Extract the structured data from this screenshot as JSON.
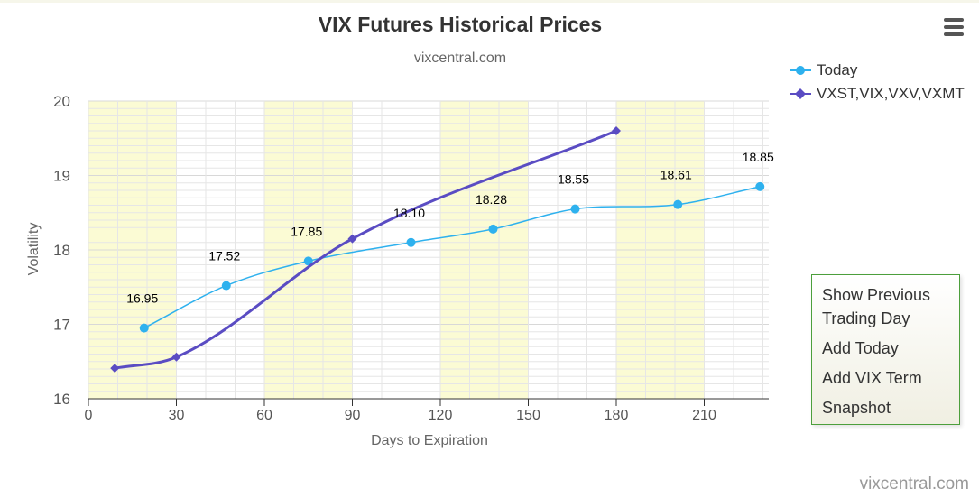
{
  "chart_data": {
    "type": "line",
    "title": "VIX Futures Historical Prices",
    "subtitle": "vixcentral.com",
    "xlabel": "Days to Expiration",
    "ylabel": "Volatility",
    "xlim": [
      0,
      232
    ],
    "ylim": [
      16,
      20
    ],
    "xticks": [
      0,
      30,
      60,
      90,
      120,
      150,
      180,
      210
    ],
    "yticks": [
      16,
      17,
      18,
      19,
      20
    ],
    "grid": true,
    "legend_position": "top-right",
    "series": [
      {
        "name": "Today",
        "color": "#2eb1ee",
        "marker": "circle",
        "x": [
          19,
          47,
          75,
          110,
          138,
          166,
          201,
          229
        ],
        "y": [
          16.95,
          17.52,
          17.85,
          18.1,
          18.28,
          18.55,
          18.61,
          18.85
        ],
        "labels": [
          "16.95",
          "17.52",
          "17.85",
          "18.10",
          "18.28",
          "18.55",
          "18.61",
          "18.85"
        ]
      },
      {
        "name": "VXST,VIX,VXV,VXMT",
        "color": "#5a4cc3",
        "marker": "diamond",
        "x": [
          9,
          30,
          90,
          180
        ],
        "y": [
          16.41,
          16.56,
          18.15,
          19.6
        ]
      }
    ]
  },
  "menu": {
    "items": [
      "Show Previous Trading Day",
      "Add Today",
      "Add VIX Term",
      "Snapshot"
    ]
  },
  "credit": "vixcentral.com",
  "colors": {
    "band": "#fbfbd4",
    "grid": "#e6e6e6",
    "menu_border": "#4c9f3c"
  }
}
